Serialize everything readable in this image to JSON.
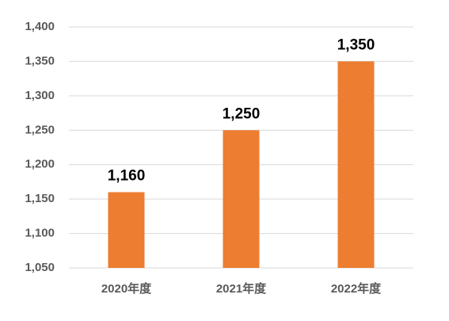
{
  "chart_data": {
    "type": "bar",
    "categories": [
      "2020年度",
      "2021年度",
      "2022年度"
    ],
    "values": [
      1160,
      1250,
      1350
    ],
    "value_labels": [
      "1,160",
      "1,250",
      "1,350"
    ],
    "color": "#ed7d31",
    "ylim": [
      1050,
      1400
    ],
    "yticks": [
      {
        "value": 1050,
        "label": "1,050"
      },
      {
        "value": 1100,
        "label": "1,100"
      },
      {
        "value": 1150,
        "label": "1,150"
      },
      {
        "value": 1200,
        "label": "1,200"
      },
      {
        "value": 1250,
        "label": "1,250"
      },
      {
        "value": 1300,
        "label": "1,300"
      },
      {
        "value": 1350,
        "label": "1,350"
      },
      {
        "value": 1400,
        "label": "1,400"
      }
    ],
    "grid": true
  }
}
